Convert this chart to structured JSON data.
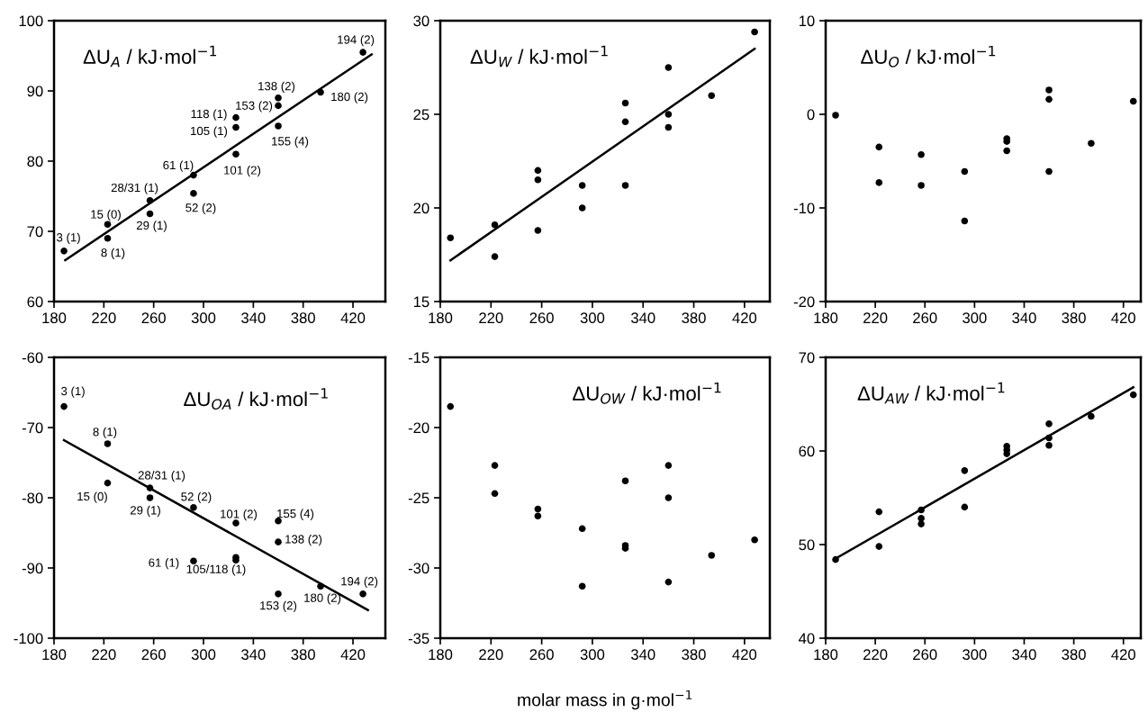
{
  "chart_data": [
    {
      "type": "scatter",
      "title": "ΔU$_{A}$ / kJ·mol$^{−1}$",
      "xlim": [
        180,
        446
      ],
      "xticks": [
        180,
        220,
        260,
        300,
        340,
        380,
        420
      ],
      "ylim": [
        60,
        100
      ],
      "yticks": [
        60,
        70,
        80,
        90,
        100
      ],
      "grid": false,
      "series": [
        {
          "marker": "circle",
          "color": "#000000",
          "x": [
            188,
            223,
            223,
            257,
            257,
            292,
            292,
            326,
            326,
            326,
            360,
            360,
            360,
            394,
            428
          ],
          "values": [
            67.2,
            71.0,
            69.0,
            74.4,
            72.5,
            78.0,
            75.4,
            81.0,
            84.8,
            86.2,
            85.0,
            87.9,
            89.0,
            89.8,
            95.5
          ],
          "value_labels": [
            "3 (1)",
            "15 (0)",
            "8 (1)",
            "28/31 (1)",
            "29 (1)",
            "61 (1)",
            "52 (2)",
            "101 (2)",
            "105 (1)",
            "118 (1)",
            "155 (4)",
            "153 (2)",
            "138 (2)",
            "180 (2)",
            "194 (2)"
          ]
        },
        {
          "type": "line",
          "color": "#000000",
          "x": [
            189,
            435
          ],
          "values": [
            65.9,
            95.2
          ]
        }
      ]
    },
    {
      "type": "scatter",
      "title": "ΔU$_{W}$ / kJ·mol$^{−1}$",
      "xlim": [
        180,
        440
      ],
      "xticks": [
        180,
        220,
        260,
        300,
        340,
        380,
        420
      ],
      "ylim": [
        15,
        30
      ],
      "yticks": [
        15,
        20,
        25,
        30
      ],
      "grid": false,
      "series": [
        {
          "marker": "circle",
          "color": "#000000",
          "x": [
            188,
            223,
            223,
            257,
            257,
            257,
            292,
            292,
            326,
            326,
            326,
            360,
            360,
            360,
            394,
            428
          ],
          "values": [
            18.4,
            19.1,
            17.4,
            22.0,
            21.5,
            18.8,
            21.2,
            20.0,
            25.6,
            24.6,
            21.2,
            27.5,
            25.0,
            24.3,
            26.0,
            29.4
          ]
        },
        {
          "type": "line",
          "color": "#000000",
          "x": [
            188,
            428
          ],
          "values": [
            17.2,
            28.5
          ]
        }
      ]
    },
    {
      "type": "scatter",
      "title": "ΔU$_{O}$ / kJ·mol$^{−1}$",
      "xlim": [
        180,
        434
      ],
      "xticks": [
        180,
        220,
        260,
        300,
        340,
        380,
        420
      ],
      "ylim": [
        -20,
        10
      ],
      "yticks": [
        -20,
        -10,
        0,
        10
      ],
      "grid": false,
      "series": [
        {
          "marker": "circle",
          "color": "#000000",
          "x": [
            188,
            223,
            223,
            257,
            257,
            292,
            292,
            326,
            326,
            326,
            360,
            360,
            360,
            394,
            428
          ],
          "values": [
            -0.1,
            -3.5,
            -7.3,
            -4.3,
            -7.6,
            -6.1,
            -11.4,
            -2.6,
            -2.9,
            -3.9,
            2.6,
            1.6,
            -6.1,
            -3.1,
            1.4
          ]
        }
      ]
    },
    {
      "type": "scatter",
      "title": "ΔU$_{OA}$ / kJ·mol$^{−1}$",
      "xlim": [
        180,
        446
      ],
      "xticks": [
        180,
        220,
        260,
        300,
        340,
        380,
        420
      ],
      "ylim": [
        -100,
        -60
      ],
      "yticks": [
        -100,
        -90,
        -80,
        -70,
        -60
      ],
      "grid": false,
      "series": [
        {
          "marker": "circle",
          "color": "#000000",
          "x": [
            188,
            223,
            223,
            257,
            257,
            292,
            292,
            326,
            326,
            326,
            360,
            360,
            360,
            394,
            428
          ],
          "values": [
            -67.0,
            -72.3,
            -77.9,
            -78.6,
            -80.0,
            -81.4,
            -89.0,
            -83.6,
            -88.5,
            -88.9,
            -83.3,
            -86.3,
            -93.7,
            -92.6,
            -93.7
          ],
          "value_labels": [
            "3 (1)",
            "8 (1)",
            "15 (0)",
            "28/31 (1)",
            "29 (1)",
            "52 (2)",
            "61 (1)",
            "101 (2)",
            "105/118 (1)",
            null,
            "155 (4)",
            "138 (2)",
            "153 (2)",
            "180 (2)",
            "194 (2)"
          ]
        },
        {
          "type": "line",
          "color": "#000000",
          "x": [
            188,
            432
          ],
          "values": [
            -71.8,
            -96.0
          ]
        }
      ]
    },
    {
      "type": "scatter",
      "title": "ΔU$_{OW}$ / kJ·mol$^{−1}$",
      "xlabel": "molar mass in g·mol$^{−1}$",
      "xlim": [
        180,
        440
      ],
      "xticks": [
        180,
        220,
        260,
        300,
        340,
        380,
        420
      ],
      "ylim": [
        -35,
        -15
      ],
      "yticks": [
        -35,
        -30,
        -25,
        -20,
        -15
      ],
      "grid": false,
      "series": [
        {
          "marker": "circle",
          "color": "#000000",
          "x": [
            188,
            223,
            223,
            257,
            257,
            292,
            292,
            326,
            326,
            326,
            360,
            360,
            360,
            394,
            428
          ],
          "values": [
            -18.5,
            -22.7,
            -24.7,
            -25.8,
            -26.3,
            -27.2,
            -31.3,
            -23.8,
            -28.4,
            -28.6,
            -22.7,
            -25.0,
            -31.0,
            -29.1,
            -28.0
          ]
        }
      ]
    },
    {
      "type": "scatter",
      "title": "ΔU$_{AW}$ / kJ·mol$^{−1}$",
      "xlim": [
        180,
        434
      ],
      "xticks": [
        180,
        220,
        260,
        300,
        340,
        380,
        420
      ],
      "ylim": [
        40,
        70
      ],
      "yticks": [
        40,
        50,
        60,
        70
      ],
      "grid": false,
      "series": [
        {
          "marker": "circle",
          "color": "#000000",
          "x": [
            188,
            223,
            223,
            257,
            257,
            257,
            292,
            292,
            326,
            326,
            326,
            360,
            360,
            360,
            394,
            428
          ],
          "values": [
            48.4,
            53.5,
            49.8,
            53.7,
            52.8,
            52.2,
            57.9,
            54.0,
            60.5,
            60.1,
            59.7,
            62.9,
            61.4,
            60.6,
            63.7,
            66.0
          ]
        },
        {
          "type": "line",
          "color": "#000000",
          "x": [
            188,
            428
          ],
          "values": [
            48.5,
            66.8
          ]
        }
      ]
    }
  ]
}
